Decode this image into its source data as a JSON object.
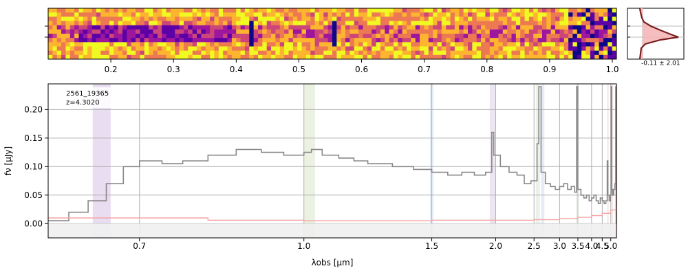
{
  "figure": {
    "object_id": "2561_19365",
    "redshift_label": "z=4.3020"
  },
  "chart_data": [
    {
      "type": "heatmap",
      "name": "2d-spectrum",
      "colormap": "plasma",
      "top_axis_ticks": [
        "0.2",
        "0.3",
        "0.4",
        "0.5",
        "0.6",
        "0.7",
        "0.8",
        "0.9",
        "1.0"
      ],
      "top_axis_range": [
        0.1,
        1.0
      ]
    },
    {
      "type": "line",
      "name": "pixel-histogram",
      "annotation": "-0.11 ± 2.01"
    },
    {
      "type": "line",
      "name": "1d-spectrum",
      "xlabel": "λobs [μm]",
      "ylabel": "fν [μJy]",
      "xlim": [
        0.6,
        5.4
      ],
      "ylim": [
        -0.025,
        0.245
      ],
      "x_scale": "reciprocal",
      "x_ticks": [
        "0.7",
        "1.0",
        "1.5",
        "2.0",
        "2.5",
        "3.0",
        "3.5",
        "4.0",
        "4.5",
        "5.0"
      ],
      "y_ticks": [
        "0.00",
        "0.05",
        "0.10",
        "0.15",
        "0.20"
      ],
      "grid": true,
      "series": [
        {
          "color": "#888888",
          "x": [
            0.6,
            0.62,
            0.64,
            0.66,
            0.68,
            0.7,
            0.73,
            0.76,
            0.8,
            0.85,
            0.9,
            0.95,
            1.0,
            1.02,
            1.05,
            1.1,
            1.15,
            1.2,
            1.3,
            1.4,
            1.5,
            1.6,
            1.7,
            1.8,
            1.9,
            1.96,
            1.98,
            2.05,
            2.15,
            2.25,
            2.35,
            2.45,
            2.55,
            2.58,
            2.62,
            2.7,
            2.8,
            2.9,
            3.0,
            3.1,
            3.2,
            3.3,
            3.4,
            3.46,
            3.5,
            3.6,
            3.7,
            3.8,
            3.9,
            4.0,
            4.1,
            4.2,
            4.3,
            4.4,
            4.5,
            4.6,
            4.7,
            4.78,
            4.82,
            4.9,
            4.98,
            5.02,
            5.06,
            5.12,
            5.2,
            5.28,
            5.35,
            5.38
          ],
          "y": [
            0.005,
            0.02,
            0.04,
            0.07,
            0.1,
            0.11,
            0.105,
            0.11,
            0.12,
            0.13,
            0.125,
            0.12,
            0.125,
            0.13,
            0.12,
            0.115,
            0.11,
            0.105,
            0.1,
            0.095,
            0.09,
            0.085,
            0.09,
            0.085,
            0.09,
            0.16,
            0.12,
            0.1,
            0.09,
            0.085,
            0.07,
            0.075,
            0.14,
            0.24,
            0.09,
            0.07,
            0.065,
            0.06,
            0.065,
            0.07,
            0.06,
            0.065,
            0.055,
            0.24,
            0.06,
            0.05,
            0.045,
            0.05,
            0.04,
            0.045,
            0.05,
            0.04,
            0.035,
            0.045,
            0.04,
            0.035,
            0.04,
            0.11,
            0.05,
            0.04,
            0.05,
            0.24,
            0.06,
            0.05,
            0.06,
            0.07,
            0.24,
            0.0
          ]
        },
        {
          "color": "#f4a6a6",
          "x": [
            0.6,
            0.8,
            1.0,
            1.5,
            2.0,
            2.5,
            3.0,
            3.5,
            4.0,
            4.5,
            5.0,
            5.38
          ],
          "y": [
            0.01,
            0.006,
            0.005,
            0.006,
            0.006,
            0.007,
            0.009,
            0.011,
            0.014,
            0.018,
            0.024,
            0.03
          ]
        }
      ],
      "shaded_bands": [
        {
          "x": [
            0.645,
            0.665
          ],
          "color": "#e3d5ee"
        },
        {
          "x": [
            1.0,
            1.03
          ],
          "color": "#e6efd9"
        },
        {
          "x": [
            1.49,
            1.51
          ],
          "color": "#e0e8f2"
        },
        {
          "x": [
            1.94,
            2.0
          ],
          "color": "#e7e0ee"
        },
        {
          "x": [
            2.53,
            2.6
          ],
          "color": "#e5f0e5"
        },
        {
          "x": [
            2.62,
            2.68
          ],
          "color": "#e2e6f2"
        },
        {
          "x": [
            3.44,
            3.48
          ],
          "color": "#e5f0e5"
        },
        {
          "x": [
            4.78,
            4.83
          ],
          "color": "#f3dede"
        },
        {
          "x": [
            5.05,
            5.1
          ],
          "color": "#f3dede"
        },
        {
          "x": [
            5.36,
            5.39
          ],
          "color": "#f8c6c6"
        }
      ]
    }
  ]
}
